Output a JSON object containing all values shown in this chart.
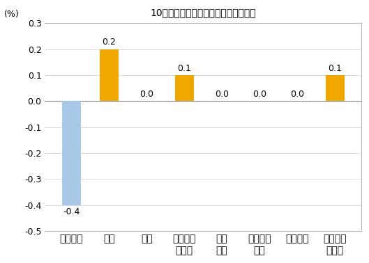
{
  "title": "10月份居民消费价格分类别环比涨跌幅",
  "ylabel": "(%)",
  "categories": [
    "食品烟酒",
    "衣着",
    "居住",
    "生活用品\n及服务",
    "交通\n通信",
    "教育文化\n娱乐",
    "医疗保健",
    "其他用品\n及服务"
  ],
  "values": [
    -0.4,
    0.2,
    0.0,
    0.1,
    0.0,
    0.0,
    0.0,
    0.1
  ],
  "bar_colors": [
    "#a8c8e8",
    "#f0a800",
    "#f0a800",
    "#f0a800",
    "#f0a800",
    "#f0a800",
    "#f0a800",
    "#f0a800"
  ],
  "ylim": [
    -0.5,
    0.3
  ],
  "yticks": [
    -0.5,
    -0.4,
    -0.3,
    -0.2,
    -0.1,
    0.0,
    0.1,
    0.2,
    0.3
  ],
  "background_color": "#ffffff",
  "title_fontsize": 13,
  "label_fontsize": 9,
  "tick_fontsize": 9,
  "value_fontsize": 9,
  "bar_width": 0.5
}
